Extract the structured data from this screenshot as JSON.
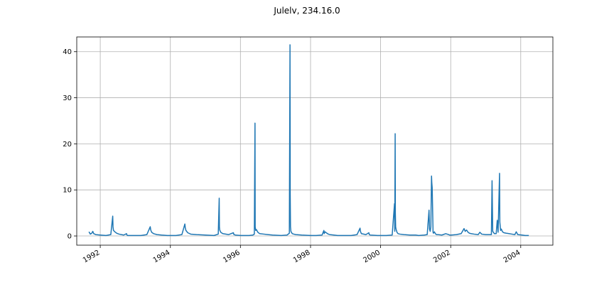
{
  "chart_data": {
    "type": "line",
    "title": "Julelv, 234.16.0",
    "xlabel": "",
    "ylabel": "",
    "x_range": [
      "1991-05-01",
      "2004-12-01"
    ],
    "ylim": [
      -2,
      43.2
    ],
    "grid": true,
    "x_ticks": [
      "1992",
      "1994",
      "1996",
      "1998",
      "2000",
      "2002",
      "2004"
    ],
    "y_ticks": [
      "0",
      "10",
      "20",
      "30",
      "40"
    ],
    "series": [
      {
        "color": "#1f77b4",
        "x": [
          "1991-09-05",
          "1991-09-20",
          "1991-10-05",
          "1991-10-15",
          "1991-10-25",
          "1991-11-15",
          "1992-01-01",
          "1992-03-01",
          "1992-04-20",
          "1992-05-10",
          "1992-05-13",
          "1992-05-18",
          "1992-06-01",
          "1992-06-20",
          "1992-07-15",
          "1992-09-01",
          "1992-10-01",
          "1992-10-05",
          "1992-10-15",
          "1992-12-01",
          "1993-03-01",
          "1993-05-01",
          "1993-06-05",
          "1993-06-10",
          "1993-06-20",
          "1993-07-10",
          "1993-08-15",
          "1993-10-01",
          "1993-12-01",
          "1994-03-01",
          "1994-05-01",
          "1994-06-01",
          "1994-06-05",
          "1994-06-12",
          "1994-07-01",
          "1994-08-01",
          "1994-10-01",
          "1995-01-01",
          "1995-04-01",
          "1995-05-15",
          "1995-05-25",
          "1995-05-27",
          "1995-05-30",
          "1995-06-10",
          "1995-07-01",
          "1995-09-01",
          "1995-10-20",
          "1995-10-25",
          "1995-11-10",
          "1996-01-01",
          "1996-04-01",
          "1996-05-10",
          "1996-05-25",
          "1996-06-01",
          "1996-06-03",
          "1996-06-08",
          "1996-06-15",
          "1996-07-01",
          "1996-07-20",
          "1996-09-01",
          "1996-10-15",
          "1996-12-01",
          "1997-03-01",
          "1997-05-01",
          "1997-05-25",
          "1997-06-01",
          "1997-06-03",
          "1997-06-06",
          "1997-06-10",
          "1997-06-18",
          "1997-06-25",
          "1997-07-10",
          "1997-08-01",
          "1997-10-01",
          "1998-01-01",
          "1998-03-01",
          "1998-05-01",
          "1998-05-20",
          "1998-05-23",
          "1998-06-01",
          "1998-06-20",
          "1998-07-05",
          "1998-07-20",
          "1998-09-01",
          "1998-10-10",
          "1998-12-01",
          "1999-03-01",
          "1999-05-01",
          "1999-06-01",
          "1999-06-05",
          "1999-06-15",
          "1999-08-01",
          "1999-09-01",
          "1999-09-05",
          "1999-09-15",
          "1999-12-01",
          "2000-03-01",
          "2000-05-01",
          "2000-05-25",
          "2000-05-28",
          "2000-06-01",
          "2000-06-03",
          "2000-06-06",
          "2000-06-10",
          "2000-06-20",
          "2000-07-01",
          "2000-07-20",
          "2000-09-01",
          "2000-11-01",
          "2001-01-01",
          "2001-02-01",
          "2001-04-01",
          "2001-05-01",
          "2001-05-20",
          "2001-05-25",
          "2001-06-01",
          "2001-06-08",
          "2001-06-15",
          "2001-06-18",
          "2001-06-22",
          "2001-07-01",
          "2001-07-05",
          "2001-07-15",
          "2001-07-25",
          "2001-08-05",
          "2001-08-20",
          "2001-10-01",
          "2001-11-10",
          "2001-12-10",
          "2001-12-20",
          "2002-01-05",
          "2002-03-01",
          "2002-04-20",
          "2002-05-20",
          "2002-06-01",
          "2002-06-15",
          "2002-07-01",
          "2002-07-15",
          "2002-08-01",
          "2002-09-01",
          "2002-10-15",
          "2002-11-01",
          "2002-11-20",
          "2003-01-01",
          "2003-03-01",
          "2003-03-08",
          "2003-03-15",
          "2003-04-01",
          "2003-04-20",
          "2003-05-01",
          "2003-05-10",
          "2003-05-25",
          "2003-05-28",
          "2003-06-05",
          "2003-06-12",
          "2003-06-25",
          "2003-07-10",
          "2003-08-01",
          "2003-09-01",
          "2003-10-01",
          "2003-11-01",
          "2003-11-15",
          "2003-12-01",
          "2004-01-15",
          "2004-02-15",
          "2004-03-25"
        ],
        "y": [
          0.9,
          0.4,
          0.6,
          1.0,
          0.5,
          0.3,
          0.2,
          0.1,
          0.3,
          4.3,
          2.0,
          1.2,
          0.9,
          0.6,
          0.4,
          0.2,
          0.5,
          0.2,
          0.1,
          0.1,
          0.1,
          0.3,
          2.0,
          1.3,
          0.8,
          0.5,
          0.3,
          0.2,
          0.1,
          0.1,
          0.3,
          2.6,
          1.8,
          1.2,
          0.7,
          0.4,
          0.3,
          0.2,
          0.1,
          0.4,
          8.2,
          2.0,
          1.3,
          0.8,
          0.5,
          0.3,
          0.7,
          0.3,
          0.2,
          0.1,
          0.1,
          0.2,
          0.4,
          24.5,
          2.0,
          1.2,
          1.4,
          0.8,
          0.5,
          0.4,
          0.3,
          0.2,
          0.1,
          0.2,
          0.6,
          41.5,
          9.0,
          2.0,
          1.0,
          0.7,
          0.5,
          0.4,
          0.3,
          0.2,
          0.1,
          0.1,
          0.2,
          1.2,
          0.5,
          0.9,
          0.6,
          0.4,
          0.3,
          0.2,
          0.1,
          0.1,
          0.1,
          0.3,
          1.7,
          1.0,
          0.5,
          0.3,
          0.7,
          0.3,
          0.2,
          0.1,
          0.1,
          0.2,
          7.0,
          1.0,
          22.2,
          5.0,
          2.0,
          1.5,
          0.8,
          0.5,
          0.4,
          0.3,
          0.2,
          0.2,
          0.1,
          0.2,
          0.3,
          5.6,
          1.5,
          1.0,
          2.0,
          13.0,
          11.5,
          10.5,
          0.8,
          0.6,
          0.9,
          0.5,
          0.3,
          0.3,
          0.2,
          0.5,
          0.3,
          0.2,
          0.2,
          0.3,
          0.5,
          1.6,
          1.0,
          1.3,
          0.8,
          0.6,
          0.5,
          0.4,
          0.3,
          0.8,
          0.4,
          0.3,
          0.3,
          12.0,
          1.0,
          0.5,
          0.5,
          3.4,
          0.8,
          13.6,
          3.0,
          1.2,
          1.5,
          0.9,
          0.7,
          0.6,
          0.5,
          0.4,
          0.3,
          0.9,
          0.3,
          0.2,
          0.1,
          0.1
        ]
      }
    ]
  }
}
